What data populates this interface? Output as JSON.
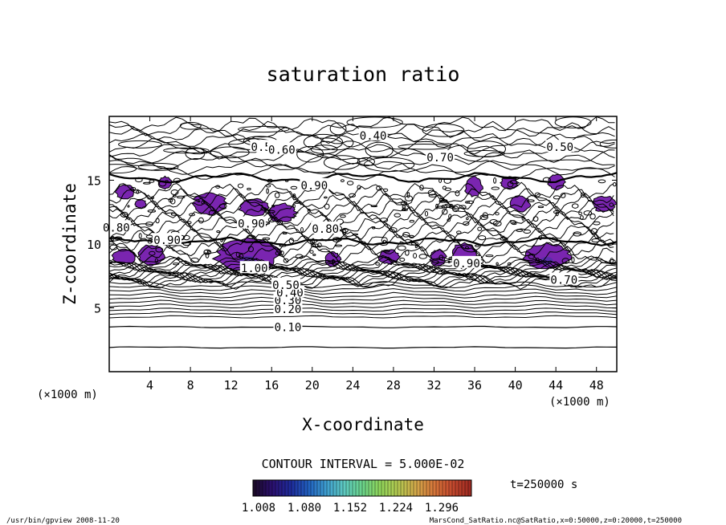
{
  "chart_data": {
    "type": "contour",
    "title": "saturation ratio",
    "xlabel": "X-coordinate",
    "ylabel": "Z-coordinate",
    "x_unit": "(×1000 m)",
    "y_unit": "(×1000 m)",
    "xlim": [
      0,
      50
    ],
    "ylim": [
      0,
      20
    ],
    "x_ticks": [
      4,
      8,
      12,
      16,
      20,
      24,
      28,
      32,
      36,
      40,
      44,
      48
    ],
    "y_ticks": [
      5,
      10,
      15
    ],
    "contour_interval_text": "CONTOUR INTERVAL = 5.000E-02",
    "contour_labels": [
      {
        "text": "0.10",
        "x": 17.6,
        "z": 3.5
      },
      {
        "text": "0.20",
        "x": 17.6,
        "z": 4.9
      },
      {
        "text": "0.30",
        "x": 17.6,
        "z": 5.6
      },
      {
        "text": "0.40",
        "x": 17.8,
        "z": 6.2
      },
      {
        "text": "0.50",
        "x": 17.4,
        "z": 6.8
      },
      {
        "text": "1.00",
        "x": 14.3,
        "z": 8.1
      },
      {
        "text": "0.90",
        "x": 35.2,
        "z": 8.5
      },
      {
        "text": "0.70",
        "x": 44.8,
        "z": 7.2
      },
      {
        "text": "0.80",
        "x": 0.7,
        "z": 11.3
      },
      {
        "text": "0.90",
        "x": 5.7,
        "z": 10.3
      },
      {
        "text": "0.90",
        "x": 14.0,
        "z": 11.6
      },
      {
        "text": "0.80",
        "x": 21.3,
        "z": 11.2
      },
      {
        "text": "0.90",
        "x": 20.2,
        "z": 14.6
      },
      {
        "text": "0.70",
        "x": 32.6,
        "z": 16.8
      },
      {
        "text": "0.50",
        "x": 15.3,
        "z": 17.6
      },
      {
        "text": "0.60",
        "x": 17.0,
        "z": 17.4
      },
      {
        "text": "0.40",
        "x": 26.0,
        "z": 18.5
      },
      {
        "text": "0.50",
        "x": 44.4,
        "z": 17.6
      }
    ],
    "supersaturated_regions": [
      {
        "x": [
          0.6,
          2.6
        ],
        "z": [
          14.7,
          13.5
        ]
      },
      {
        "x": [
          2.5,
          3.7
        ],
        "z": [
          13.5,
          12.8
        ]
      },
      {
        "x": [
          4.8,
          6.2
        ],
        "z": [
          15.3,
          14.3
        ]
      },
      {
        "x": [
          8.2,
          11.6
        ],
        "z": [
          14.1,
          12.3
        ]
      },
      {
        "x": [
          12.8,
          15.7
        ],
        "z": [
          13.6,
          12.1
        ]
      },
      {
        "x": [
          15.5,
          18.5
        ],
        "z": [
          13.2,
          11.7
        ]
      },
      {
        "x": [
          0.2,
          2.8
        ],
        "z": [
          9.6,
          8.4
        ]
      },
      {
        "x": [
          2.9,
          5.5
        ],
        "z": [
          10.0,
          8.3
        ]
      },
      {
        "x": [
          10.3,
          17.0
        ],
        "z": [
          10.5,
          7.8
        ]
      },
      {
        "x": [
          21.2,
          22.8
        ],
        "z": [
          9.4,
          8.2
        ]
      },
      {
        "x": [
          26.5,
          28.6
        ],
        "z": [
          9.6,
          8.4
        ]
      },
      {
        "x": [
          31.6,
          33.2
        ],
        "z": [
          9.6,
          8.2
        ]
      },
      {
        "x": [
          33.6,
          36.4
        ],
        "z": [
          10.1,
          8.1
        ]
      },
      {
        "x": [
          40.6,
          45.6
        ],
        "z": [
          10.1,
          8.0
        ]
      },
      {
        "x": [
          35.0,
          36.8
        ],
        "z": [
          15.3,
          13.7
        ]
      },
      {
        "x": [
          38.5,
          40.3
        ],
        "z": [
          15.3,
          14.3
        ]
      },
      {
        "x": [
          39.5,
          41.5
        ],
        "z": [
          13.8,
          12.5
        ]
      },
      {
        "x": [
          43.2,
          44.9
        ],
        "z": [
          15.5,
          14.2
        ]
      },
      {
        "x": [
          47.5,
          50.0
        ],
        "z": [
          13.8,
          12.5
        ]
      }
    ],
    "colorbar": {
      "tick_labels": [
        "1.008",
        "1.080",
        "1.152",
        "1.224",
        "1.296"
      ],
      "colors": [
        "#1c0a2a",
        "#2b1070",
        "#1e2a9a",
        "#2160c0",
        "#3e9ed0",
        "#5ec9c0",
        "#6ad38a",
        "#8fd45a",
        "#b3c850",
        "#d2a84a",
        "#d6763a",
        "#c44a2e",
        "#a02a22"
      ]
    },
    "time_text": "t=250000 s"
  },
  "footer": {
    "left": "/usr/bin/gpview  2008-11-20",
    "right": "MarsCond_SatRatio.nc@SatRatio,x=0:50000,z=0:20000,t=250000"
  },
  "colors": {
    "fill": "#7a25b0",
    "fill_core": "#5030a8",
    "line": "#000000"
  }
}
